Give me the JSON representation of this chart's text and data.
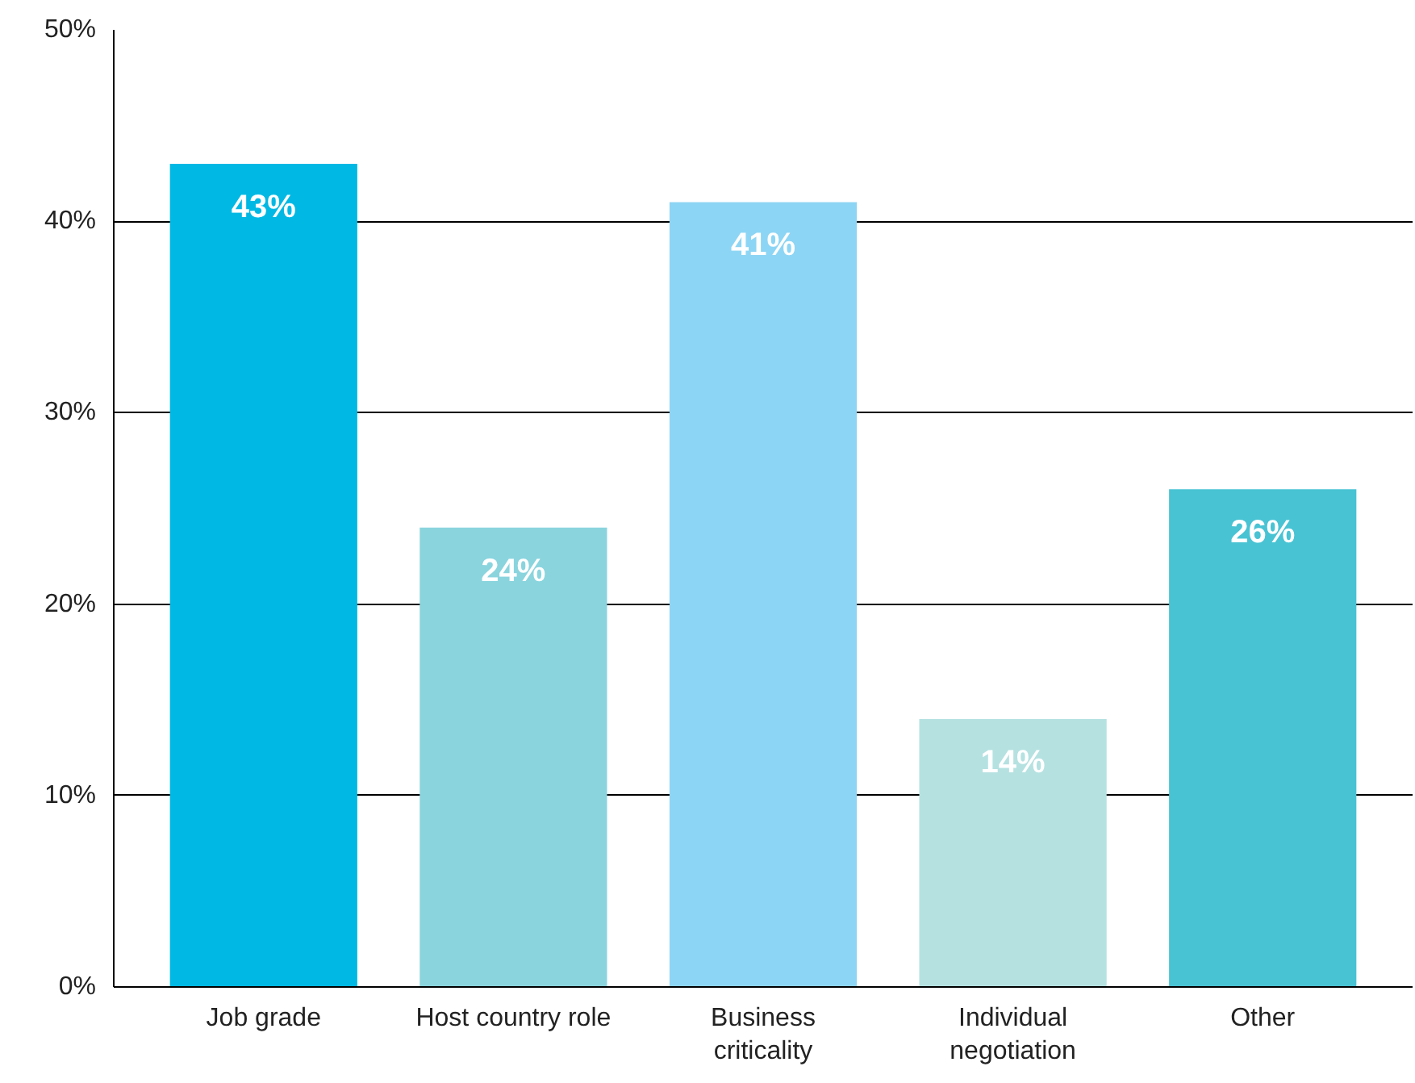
{
  "chart_data": {
    "type": "bar",
    "categories": [
      "Job grade",
      "Host country role",
      "Business criticality",
      "Individual negotiation",
      "Other"
    ],
    "values": [
      43,
      24,
      41,
      14,
      26
    ],
    "colors": [
      "#00b8e4",
      "#8ad4de",
      "#8dd5f4",
      "#b5e1e1",
      "#48c3d3"
    ],
    "value_labels": [
      "43%",
      "24%",
      "41%",
      "14%",
      "26%"
    ],
    "ylim": [
      0,
      50
    ],
    "yticks": [
      {
        "value": 0,
        "label": "0%"
      },
      {
        "value": 10,
        "label": "10%"
      },
      {
        "value": 20,
        "label": "20%"
      },
      {
        "value": 30,
        "label": "30%"
      },
      {
        "value": 40,
        "label": "40%"
      },
      {
        "value": 50,
        "label": "50%"
      }
    ],
    "grid": "y"
  }
}
